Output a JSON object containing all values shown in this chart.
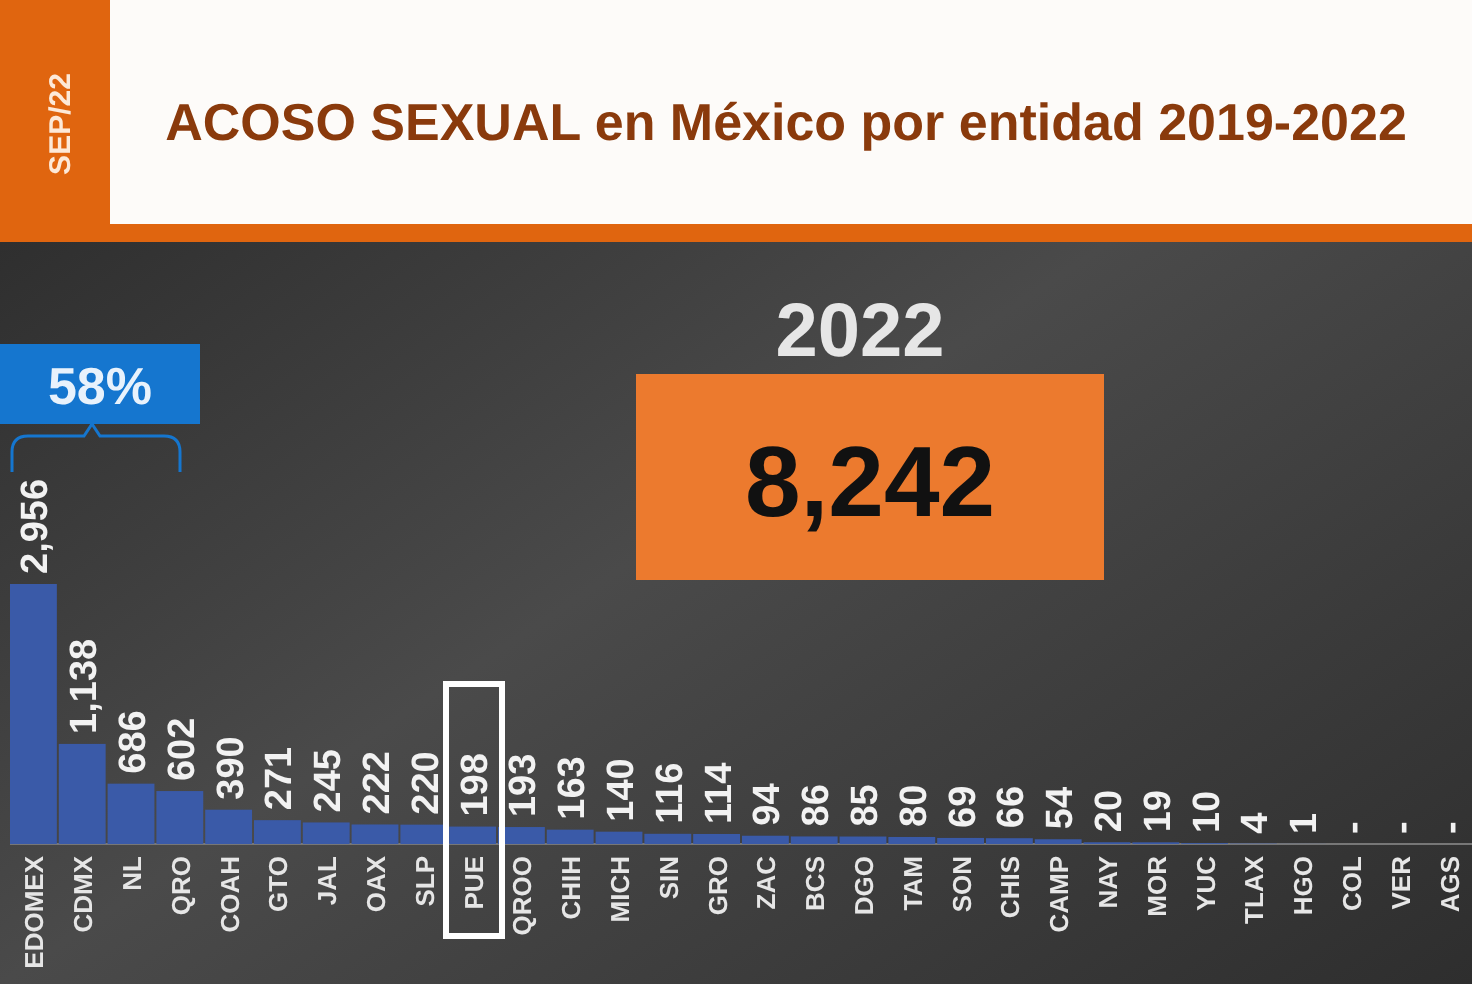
{
  "chart_data": {
    "type": "bar",
    "title": "ACOSO SEXUAL en México por entidad 2019-2022",
    "subtitle": "SEP/22",
    "categories": [
      "EDOMEX",
      "CDMX",
      "NL",
      "QRO",
      "COAH",
      "GTO",
      "JAL",
      "OAX",
      "SLP",
      "PUE",
      "QROO",
      "CHIH",
      "MICH",
      "SIN",
      "GRO",
      "ZAC",
      "BCS",
      "DGO",
      "TAM",
      "SON",
      "CHIS",
      "CAMP",
      "NAY",
      "MOR",
      "YUC",
      "TLAX",
      "HGO",
      "COL",
      "VER",
      "AGS"
    ],
    "values": [
      2956,
      1138,
      686,
      602,
      390,
      271,
      245,
      222,
      220,
      198,
      193,
      163,
      140,
      116,
      114,
      94,
      86,
      85,
      80,
      69,
      66,
      54,
      20,
      19,
      10,
      4,
      1,
      null,
      null,
      null
    ],
    "value_labels": [
      "2,956",
      "1,138",
      "686",
      "602",
      "390",
      "271",
      "245",
      "222",
      "220",
      "198",
      "193",
      "163",
      "140",
      "116",
      "114",
      "94",
      "86",
      "85",
      "80",
      "69",
      "66",
      "54",
      "20",
      "19",
      "10",
      "4",
      "1",
      "-",
      "-",
      "-"
    ],
    "color": "#3a5aa8",
    "annotations": [
      "2022",
      "8,242",
      "58%"
    ]
  }
}
